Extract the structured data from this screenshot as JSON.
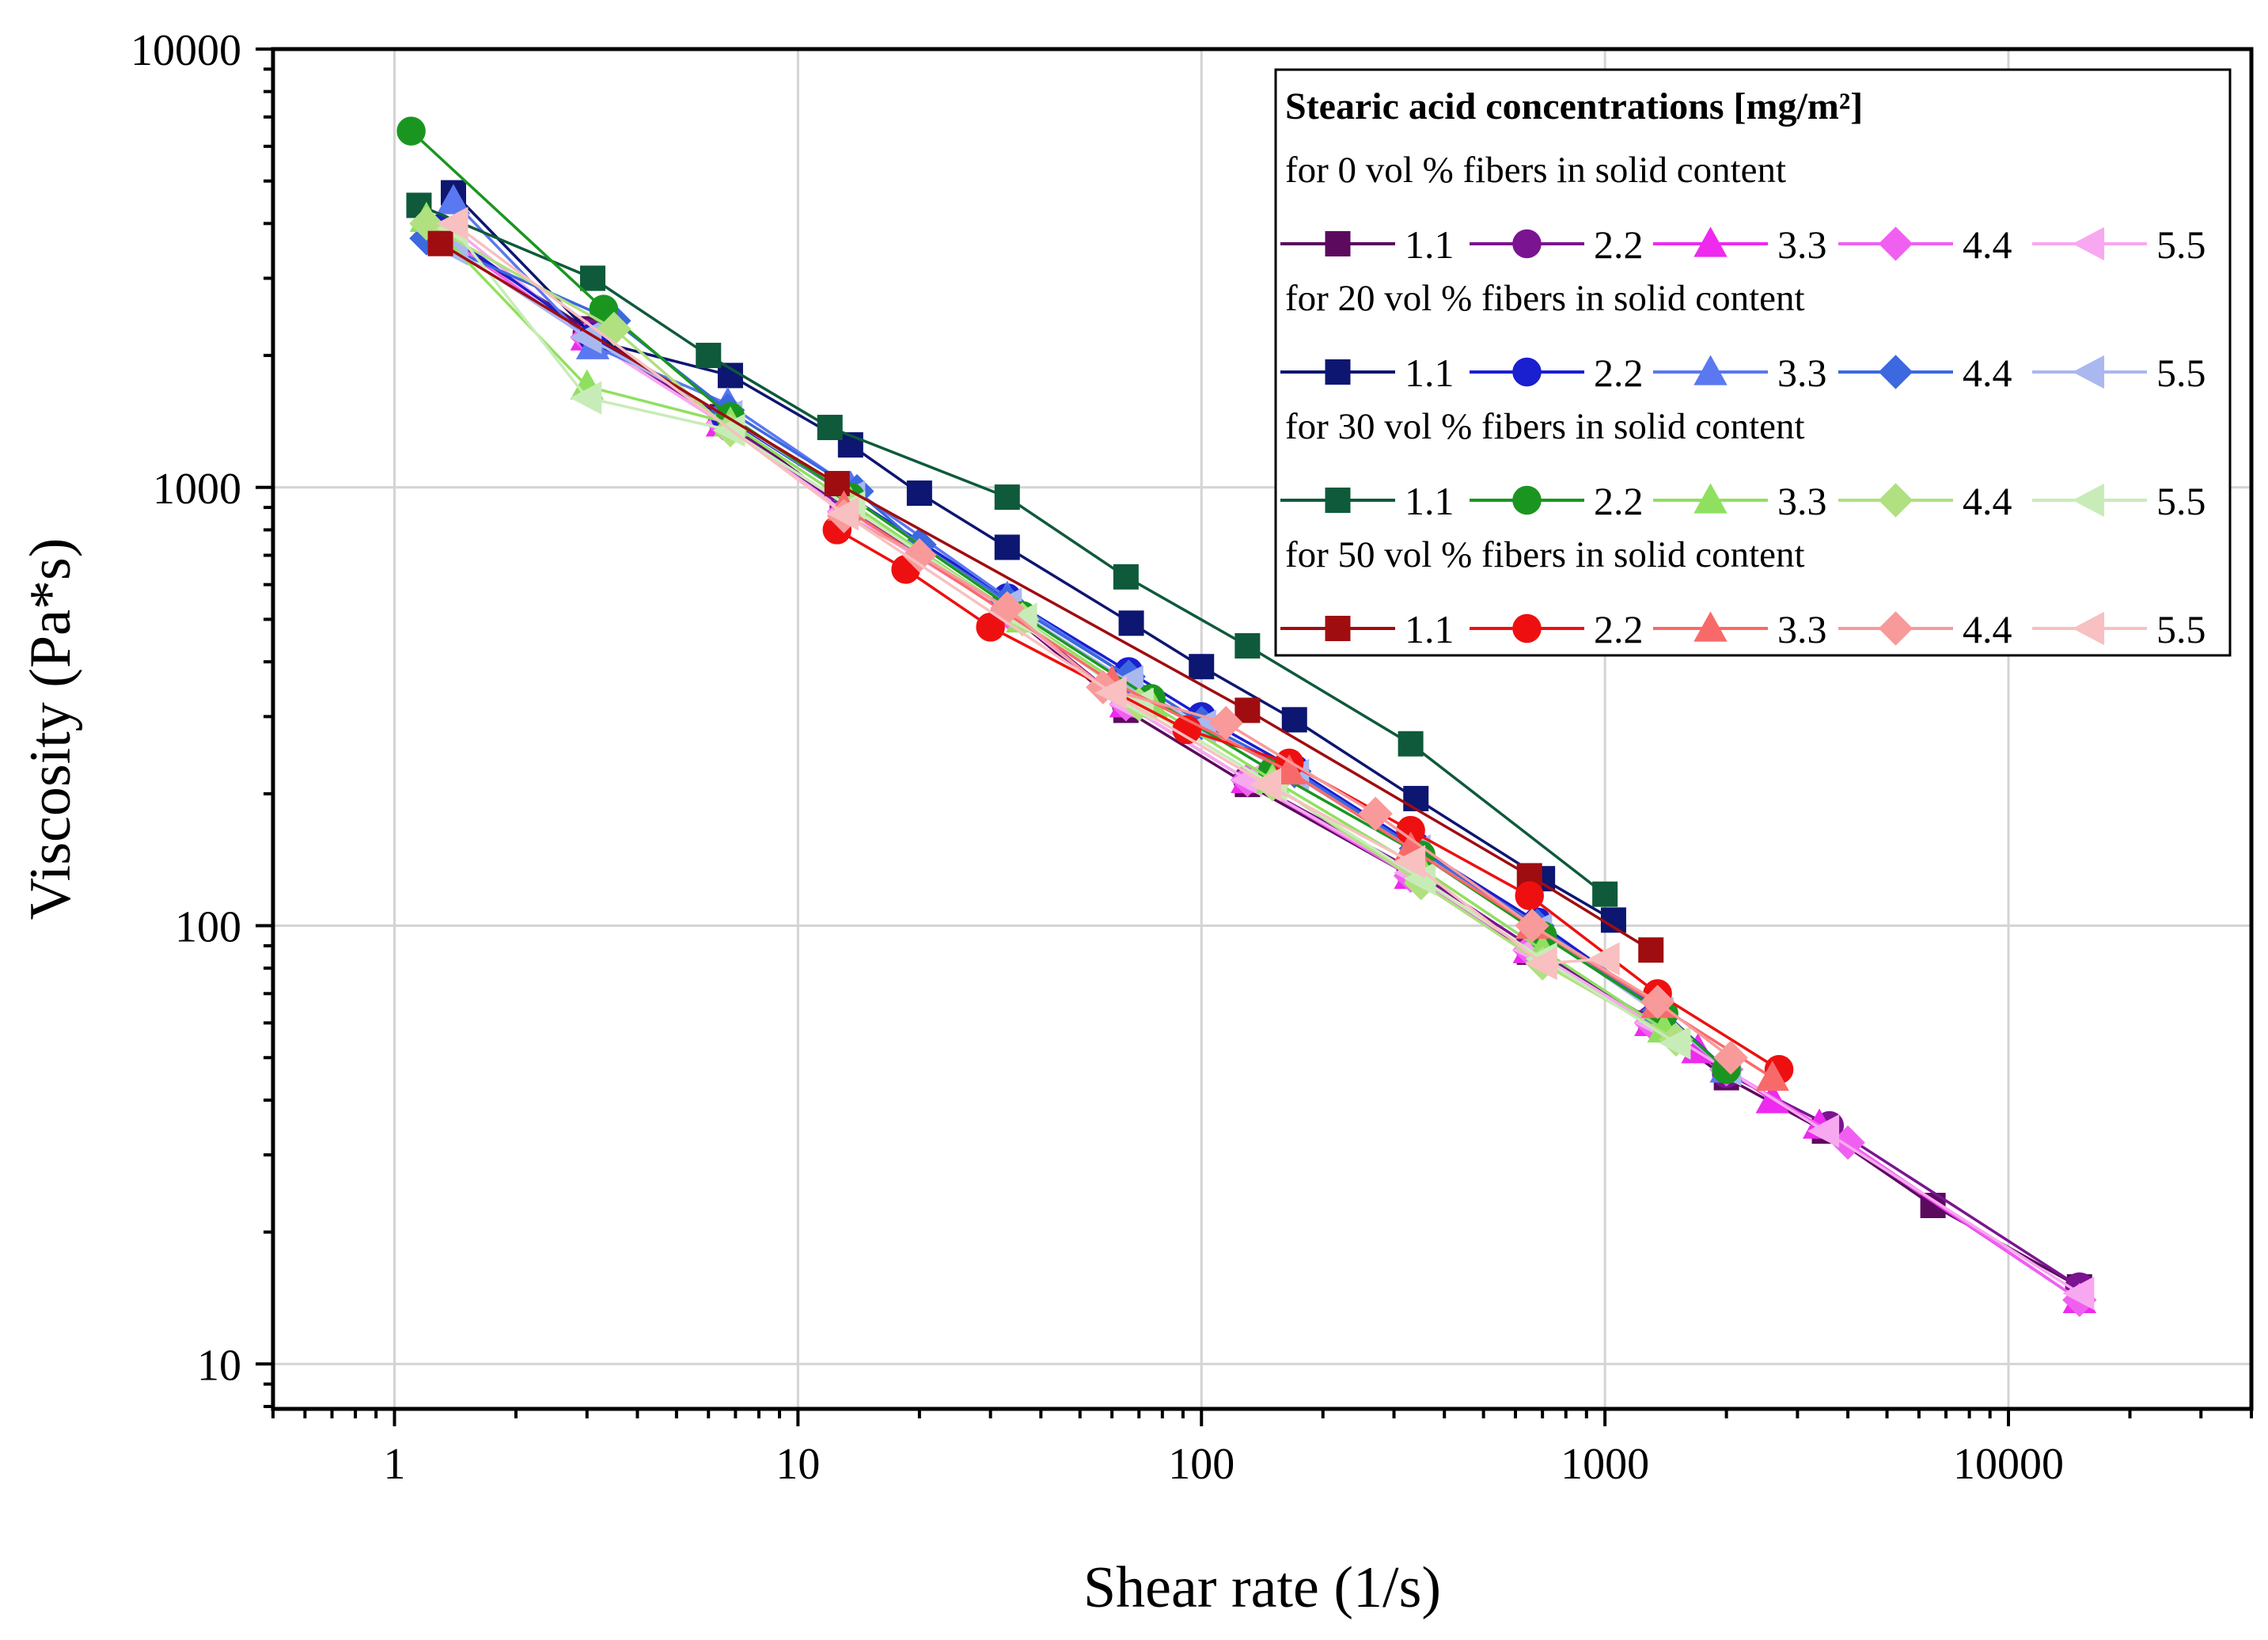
{
  "chart_data": {
    "type": "line",
    "scale": "log-log",
    "xlabel": "Shear rate (1/s)",
    "ylabel": "Viscosity (Pa*s)",
    "xlim": [
      0.5,
      40000
    ],
    "ylim": [
      7.9,
      10000
    ],
    "grid": true,
    "x_ticks": [
      "1",
      "10",
      "100",
      "1000",
      "10000"
    ],
    "y_ticks": [
      "10",
      "100",
      "1000",
      "10000"
    ],
    "legend": {
      "position": "top-right",
      "title": "Stearic acid concentrations [mg/m²]",
      "groups": [
        "for 0 vol % fibers in solid content",
        "for 20 vol % fibers in solid content",
        "for 30 vol % fibers in solid content",
        "for 50 vol % fibers in solid content"
      ],
      "labels": [
        "1.1",
        "2.2",
        "3.3",
        "4.4",
        "5.5"
      ]
    },
    "series": [
      {
        "name": "0 vol % – 1.1",
        "group": 0,
        "color": "#5b0a5e",
        "marker": "square",
        "x": [
          1.3,
          3.0,
          6.5,
          13,
          33,
          65,
          130,
          330,
          650,
          1300,
          2000,
          3500,
          6500,
          15000
        ],
        "y": [
          3800,
          2300,
          1450,
          900,
          520,
          310,
          210,
          130,
          87,
          60,
          45,
          34,
          23,
          15
        ]
      },
      {
        "name": "0 vol % – 2.2",
        "group": 0,
        "color": "#7a1490",
        "marker": "circle",
        "x": [
          1.3,
          3.0,
          6.5,
          13,
          33,
          65,
          130,
          330,
          650,
          1300,
          2000,
          3600,
          15000
        ],
        "y": [
          3900,
          2250,
          1420,
          900,
          530,
          320,
          215,
          135,
          90,
          61,
          46,
          35,
          15
        ]
      },
      {
        "name": "0 vol % – 3.3",
        "group": 0,
        "color": "#ee2aee",
        "marker": "triangle-up",
        "x": [
          1.3,
          3.0,
          6.5,
          13,
          33,
          65,
          130,
          330,
          650,
          1300,
          1700,
          2600,
          3400,
          15000
        ],
        "y": [
          3800,
          2200,
          1400,
          880,
          520,
          320,
          215,
          130,
          88,
          60,
          52,
          40,
          35,
          14
        ]
      },
      {
        "name": "0 vol % – 4.4",
        "group": 0,
        "color": "#f060f0",
        "marker": "diamond",
        "x": [
          1.3,
          3.0,
          6.5,
          13,
          33,
          65,
          130,
          330,
          650,
          1300,
          2000,
          4000,
          15000
        ],
        "y": [
          3800,
          2200,
          1400,
          880,
          520,
          320,
          215,
          130,
          88,
          60,
          47,
          32,
          14
        ]
      },
      {
        "name": "0 vol % – 5.5",
        "group": 0,
        "color": "#f8a8f0",
        "marker": "triangle-left",
        "x": [
          1.4,
          3.0,
          6.5,
          13,
          33,
          65,
          130,
          330,
          650,
          1300,
          2000,
          3500,
          15000
        ],
        "y": [
          3900,
          2200,
          1400,
          880,
          520,
          320,
          215,
          132,
          88,
          60,
          47,
          34,
          14.5
        ]
      },
      {
        "name": "20 vol % – 1.1",
        "group": 1,
        "color": "#0d1670",
        "marker": "square",
        "x": [
          1.4,
          3.2,
          6.8,
          13.5,
          20,
          33,
          67,
          100,
          170,
          340,
          700,
          1050
        ],
        "y": [
          4700,
          2150,
          1800,
          1250,
          970,
          730,
          490,
          390,
          295,
          195,
          128,
          103
        ]
      },
      {
        "name": "20 vol % – 2.2",
        "group": 1,
        "color": "#1a1fcf",
        "marker": "circle",
        "x": [
          1.3,
          3.1,
          6.6,
          13.5,
          33,
          66,
          100,
          170,
          340,
          680,
          1360,
          2000
        ],
        "y": [
          3900,
          2200,
          1450,
          950,
          560,
          380,
          300,
          228,
          152,
          102,
          65,
          47
        ]
      },
      {
        "name": "20 vol % – 3.3",
        "group": 1,
        "color": "#5a78f0",
        "marker": "triangle-up",
        "x": [
          1.4,
          3.1,
          6.7,
          13.5,
          33,
          66,
          100,
          170,
          340,
          680,
          1360,
          2000
        ],
        "y": [
          4500,
          2100,
          1550,
          1000,
          560,
          370,
          290,
          225,
          150,
          100,
          64,
          47
        ]
      },
      {
        "name": "20 vol % – 4.4",
        "group": 1,
        "color": "#3c68e0",
        "marker": "diamond",
        "x": [
          1.2,
          3.5,
          6.7,
          14,
          20,
          33,
          66,
          100,
          170,
          340,
          680,
          1360
        ],
        "y": [
          3700,
          2400,
          1500,
          980,
          740,
          550,
          370,
          290,
          225,
          150,
          100,
          64
        ]
      },
      {
        "name": "20 vol % – 5.5",
        "group": 1,
        "color": "#aab8f0",
        "marker": "triangle-left",
        "x": [
          1.4,
          3.0,
          6.7,
          13.5,
          33,
          66,
          100,
          170,
          340,
          680,
          1360,
          2000
        ],
        "y": [
          3500,
          2200,
          1450,
          950,
          540,
          360,
          285,
          220,
          148,
          98,
          63,
          47
        ]
      },
      {
        "name": "30 vol % – 1.1",
        "group": 2,
        "color": "#0e5a3a",
        "marker": "square",
        "x": [
          1.15,
          3.1,
          6.0,
          12,
          33,
          65,
          130,
          330,
          1000
        ],
        "y": [
          4400,
          3000,
          2000,
          1370,
          950,
          625,
          435,
          260,
          118
        ]
      },
      {
        "name": "30 vol % – 2.2",
        "group": 2,
        "color": "#1a9620",
        "marker": "circle",
        "x": [
          1.1,
          3.3,
          6.8,
          13.5,
          36,
          75,
          150,
          350,
          700,
          1400,
          2000
        ],
        "y": [
          6500,
          2550,
          1450,
          950,
          510,
          330,
          225,
          145,
          95,
          63,
          47
        ]
      },
      {
        "name": "30 vol % – 3.3",
        "group": 2,
        "color": "#90e060",
        "marker": "triangle-up",
        "x": [
          1.2,
          3.0,
          6.8,
          13.5,
          36,
          75,
          150,
          350,
          700,
          1400
        ],
        "y": [
          4100,
          1700,
          1400,
          920,
          500,
          320,
          215,
          135,
          88,
          58
        ]
      },
      {
        "name": "30 vol % – 4.4",
        "group": 2,
        "color": "#b0e080",
        "marker": "diamond",
        "x": [
          1.2,
          3.5,
          6.8,
          13.5,
          36,
          70,
          150,
          350,
          700,
          1500
        ],
        "y": [
          4000,
          2300,
          1350,
          900,
          500,
          320,
          210,
          125,
          82,
          55
        ]
      },
      {
        "name": "30 vol % – 5.5",
        "group": 2,
        "color": "#c8ecb8",
        "marker": "triangle-left",
        "x": [
          1.4,
          3.0,
          6.8,
          13.5,
          36,
          70,
          150,
          350,
          700,
          1500
        ],
        "y": [
          3900,
          1600,
          1350,
          900,
          500,
          320,
          210,
          128,
          84,
          54
        ]
      },
      {
        "name": "50 vol % – 1.1",
        "group": 3,
        "color": "#a00d10",
        "marker": "square",
        "x": [
          1.3,
          12.5,
          130,
          650,
          1300
        ],
        "y": [
          3600,
          1020,
          310,
          130,
          88
        ]
      },
      {
        "name": "50 vol % – 2.2",
        "group": 3,
        "color": "#ee1010",
        "marker": "circle",
        "x": [
          12.5,
          18.5,
          30,
          92,
          165,
          330,
          650,
          1350,
          2700
        ],
        "y": [
          800,
          650,
          480,
          280,
          235,
          165,
          117,
          70,
          47
        ]
      },
      {
        "name": "50 vol % – 3.3",
        "group": 3,
        "color": "#f86a6a",
        "marker": "triangle-up",
        "x": [
          13,
          60,
          165,
          330,
          660,
          1350,
          2600
        ],
        "y": [
          900,
          360,
          225,
          150,
          100,
          66,
          45
        ]
      },
      {
        "name": "50 vol % – 4.4",
        "group": 3,
        "color": "#f89a9a",
        "marker": "diamond",
        "x": [
          13,
          20,
          33,
          57,
          115,
          270,
          660,
          1350,
          2050
        ],
        "y": [
          860,
          700,
          530,
          350,
          290,
          180,
          100,
          67,
          50
        ]
      },
      {
        "name": "50 vol % – 5.5",
        "group": 3,
        "color": "#f8c0c0",
        "marker": "triangle-left",
        "x": [
          1.4,
          13,
          60,
          145,
          330,
          700,
          1000
        ],
        "y": [
          4000,
          870,
          340,
          210,
          140,
          82,
          84
        ]
      }
    ]
  }
}
